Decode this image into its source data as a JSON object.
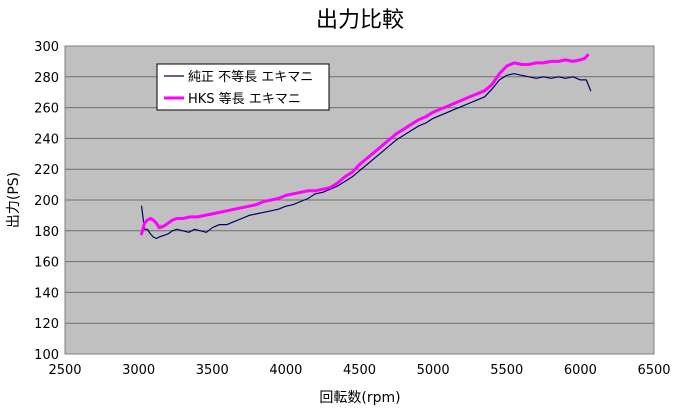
{
  "chart_data": {
    "type": "line",
    "title": "出力比較",
    "xlabel": "回転数(rpm)",
    "ylabel": "出力(PS)",
    "xlim": [
      2500,
      6500
    ],
    "ylim": [
      100,
      300
    ],
    "x_ticks": [
      2500,
      3000,
      3500,
      4000,
      4500,
      5000,
      5500,
      6000,
      6500
    ],
    "y_ticks": [
      100,
      120,
      140,
      160,
      180,
      200,
      220,
      240,
      260,
      280,
      300
    ],
    "grid": "horizontal",
    "legend_position": "top-left",
    "plot_background": "#c0c0c0",
    "series": [
      {
        "name": "純正 不等長 エキマニ",
        "color": "#000066",
        "points": [
          [
            3020,
            196
          ],
          [
            3040,
            181
          ],
          [
            3060,
            181
          ],
          [
            3080,
            178
          ],
          [
            3100,
            176
          ],
          [
            3120,
            175
          ],
          [
            3140,
            176
          ],
          [
            3170,
            177
          ],
          [
            3200,
            178
          ],
          [
            3230,
            180
          ],
          [
            3260,
            181
          ],
          [
            3300,
            180
          ],
          [
            3340,
            179
          ],
          [
            3380,
            181
          ],
          [
            3420,
            180
          ],
          [
            3460,
            179
          ],
          [
            3500,
            182
          ],
          [
            3550,
            184
          ],
          [
            3600,
            184
          ],
          [
            3650,
            186
          ],
          [
            3700,
            188
          ],
          [
            3750,
            190
          ],
          [
            3800,
            191
          ],
          [
            3850,
            192
          ],
          [
            3900,
            193
          ],
          [
            3950,
            194
          ],
          [
            4000,
            196
          ],
          [
            4050,
            197
          ],
          [
            4100,
            199
          ],
          [
            4150,
            201
          ],
          [
            4200,
            204
          ],
          [
            4250,
            205
          ],
          [
            4300,
            207
          ],
          [
            4350,
            209
          ],
          [
            4400,
            212
          ],
          [
            4450,
            215
          ],
          [
            4500,
            219
          ],
          [
            4550,
            223
          ],
          [
            4600,
            227
          ],
          [
            4650,
            231
          ],
          [
            4700,
            235
          ],
          [
            4750,
            239
          ],
          [
            4800,
            242
          ],
          [
            4850,
            245
          ],
          [
            4900,
            248
          ],
          [
            4950,
            250
          ],
          [
            5000,
            253
          ],
          [
            5050,
            255
          ],
          [
            5100,
            257
          ],
          [
            5150,
            259
          ],
          [
            5200,
            261
          ],
          [
            5250,
            263
          ],
          [
            5300,
            265
          ],
          [
            5350,
            267
          ],
          [
            5400,
            272
          ],
          [
            5450,
            278
          ],
          [
            5500,
            281
          ],
          [
            5550,
            282
          ],
          [
            5600,
            281
          ],
          [
            5650,
            280
          ],
          [
            5700,
            279
          ],
          [
            5750,
            280
          ],
          [
            5800,
            279
          ],
          [
            5850,
            280
          ],
          [
            5900,
            279
          ],
          [
            5950,
            280
          ],
          [
            6000,
            278
          ],
          [
            6040,
            278
          ],
          [
            6070,
            271
          ]
        ]
      },
      {
        "name": "HKS 等長 エキマニ",
        "color": "#ff00ff",
        "points": [
          [
            3020,
            178
          ],
          [
            3040,
            185
          ],
          [
            3060,
            187
          ],
          [
            3080,
            188
          ],
          [
            3100,
            187
          ],
          [
            3120,
            185
          ],
          [
            3140,
            182
          ],
          [
            3170,
            183
          ],
          [
            3200,
            185
          ],
          [
            3230,
            187
          ],
          [
            3260,
            188
          ],
          [
            3300,
            188
          ],
          [
            3350,
            189
          ],
          [
            3400,
            189
          ],
          [
            3450,
            190
          ],
          [
            3500,
            191
          ],
          [
            3550,
            192
          ],
          [
            3600,
            193
          ],
          [
            3650,
            194
          ],
          [
            3700,
            195
          ],
          [
            3750,
            196
          ],
          [
            3800,
            197
          ],
          [
            3850,
            199
          ],
          [
            3900,
            200
          ],
          [
            3950,
            201
          ],
          [
            4000,
            203
          ],
          [
            4050,
            204
          ],
          [
            4100,
            205
          ],
          [
            4150,
            206
          ],
          [
            4200,
            206
          ],
          [
            4250,
            207
          ],
          [
            4300,
            208
          ],
          [
            4350,
            211
          ],
          [
            4400,
            215
          ],
          [
            4450,
            218
          ],
          [
            4500,
            223
          ],
          [
            4550,
            227
          ],
          [
            4600,
            231
          ],
          [
            4650,
            235
          ],
          [
            4700,
            239
          ],
          [
            4750,
            243
          ],
          [
            4800,
            246
          ],
          [
            4850,
            249
          ],
          [
            4900,
            252
          ],
          [
            4950,
            254
          ],
          [
            5000,
            257
          ],
          [
            5050,
            259
          ],
          [
            5100,
            261
          ],
          [
            5150,
            263
          ],
          [
            5200,
            265
          ],
          [
            5250,
            267
          ],
          [
            5300,
            269
          ],
          [
            5350,
            271
          ],
          [
            5400,
            275
          ],
          [
            5450,
            282
          ],
          [
            5500,
            287
          ],
          [
            5550,
            289
          ],
          [
            5600,
            288
          ],
          [
            5650,
            288
          ],
          [
            5700,
            289
          ],
          [
            5750,
            289
          ],
          [
            5800,
            290
          ],
          [
            5850,
            290
          ],
          [
            5900,
            291
          ],
          [
            5950,
            290
          ],
          [
            6000,
            291
          ],
          [
            6030,
            292
          ],
          [
            6050,
            294
          ]
        ]
      }
    ]
  }
}
